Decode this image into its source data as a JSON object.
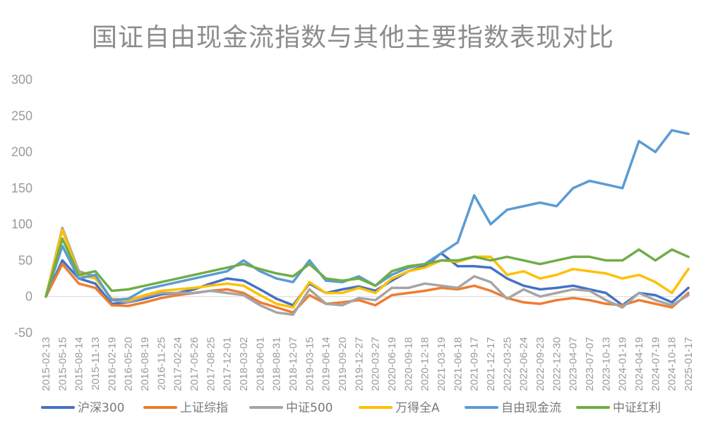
{
  "chart_data": {
    "type": "line",
    "title": "国证自由现金流指数与其他主要指数表现对比",
    "xlabel": "",
    "ylabel": "",
    "ylim": [
      -50,
      300
    ],
    "yticks": [
      -50,
      0,
      50,
      100,
      150,
      200,
      250,
      300
    ],
    "grid": false,
    "legend_position": "bottom",
    "x": [
      "2015-02-13",
      "2015-05-15",
      "2015-08-14",
      "2015-11-13",
      "2016-02-19",
      "2016-05-20",
      "2016-08-19",
      "2016-11-25",
      "2017-02-24",
      "2017-05-26",
      "2017-08-25",
      "2017-12-01",
      "2018-03-02",
      "2018-06-01",
      "2018-08-31",
      "2018-12-07",
      "2019-03-15",
      "2019-06-14",
      "2019-09-20",
      "2019-12-27",
      "2020-03-27",
      "2020-06-19",
      "2020-09-18",
      "2020-12-18",
      "2021-03-19",
      "2021-06-18",
      "2021-09-17",
      "2021-12-17",
      "2022-03-25",
      "2022-06-24",
      "2022-09-23",
      "2022-12-30",
      "2023-04-07",
      "2023-07-07",
      "2023-10-13",
      "2024-01-19",
      "2024-04-19",
      "2024-07-19",
      "2024-10-18",
      "2025-01-17"
    ],
    "x_tick_labels": [
      "2015-02-13",
      "2015-05-15",
      "2015-08-14",
      "2015-11-13",
      "2016-02-19",
      "2016-05-20",
      "2016-08-19",
      "2016-11-25",
      "2017-02-24",
      "2017-05-26",
      "2017-08-25",
      "2017-12-01",
      "2018-03-02",
      "2018-06-01",
      "2018-08-31",
      "2018-12-07",
      "2019-03-15",
      "2019-06-14",
      "2019-09-20",
      "2019-12-27",
      "2020-03-27",
      "2020-06-19",
      "2020-09-18",
      "2020-12-18",
      "2021-03-19",
      "2021-06-18",
      "2021-09-17",
      "2021-12-17",
      "2022-03-25",
      "2022-06-24",
      "2022-09-23",
      "2022-12-30",
      "2023-04-07",
      "2023-07-07",
      "2023-10-13",
      "2024-01-19",
      "2024-04-19",
      "2024-07-19",
      "2024-10-18",
      "2025-01-17"
    ],
    "series": [
      {
        "name": "沪深300",
        "color": "#4472C4",
        "values": [
          0,
          50,
          25,
          18,
          -10,
          -8,
          -3,
          3,
          5,
          10,
          18,
          25,
          22,
          10,
          -3,
          -12,
          18,
          5,
          10,
          14,
          8,
          22,
          35,
          42,
          60,
          42,
          42,
          40,
          25,
          15,
          10,
          12,
          15,
          10,
          5,
          -12,
          5,
          2,
          -8,
          12
        ]
      },
      {
        "name": "上证综指",
        "color": "#ED7D31",
        "values": [
          0,
          45,
          18,
          12,
          -12,
          -13,
          -8,
          -2,
          2,
          5,
          8,
          10,
          5,
          -8,
          -15,
          -22,
          2,
          -10,
          -8,
          -5,
          -12,
          2,
          5,
          8,
          12,
          10,
          15,
          8,
          -2,
          -8,
          -10,
          -5,
          -2,
          -5,
          -10,
          -12,
          -5,
          -10,
          -15,
          5
        ]
      },
      {
        "name": "中证500",
        "color": "#A5A5A5",
        "values": [
          0,
          95,
          35,
          28,
          -5,
          -8,
          0,
          5,
          5,
          5,
          8,
          5,
          2,
          -12,
          -22,
          -25,
          10,
          -10,
          -12,
          -2,
          -5,
          12,
          12,
          18,
          15,
          12,
          28,
          20,
          -3,
          10,
          0,
          5,
          10,
          8,
          -5,
          -15,
          5,
          -5,
          -12,
          2
        ]
      },
      {
        "name": "万得全A",
        "color": "#FFC000",
        "values": [
          0,
          92,
          30,
          25,
          -3,
          -5,
          2,
          8,
          10,
          12,
          15,
          18,
          15,
          2,
          -10,
          -15,
          20,
          5,
          5,
          12,
          5,
          25,
          35,
          40,
          50,
          48,
          55,
          55,
          30,
          35,
          25,
          30,
          38,
          35,
          32,
          25,
          30,
          20,
          5,
          38
        ]
      },
      {
        "name": "自由现金流",
        "color": "#5B9BD5",
        "values": [
          0,
          70,
          25,
          30,
          -5,
          -3,
          10,
          15,
          20,
          25,
          30,
          35,
          50,
          35,
          25,
          20,
          50,
          22,
          20,
          28,
          15,
          30,
          40,
          45,
          60,
          75,
          140,
          100,
          120,
          125,
          130,
          125,
          150,
          160,
          155,
          150,
          215,
          200,
          230,
          225
        ]
      },
      {
        "name": "中证红利",
        "color": "#70AD47",
        "values": [
          0,
          80,
          30,
          35,
          8,
          10,
          15,
          20,
          25,
          30,
          35,
          40,
          45,
          38,
          32,
          28,
          45,
          25,
          22,
          25,
          15,
          35,
          42,
          45,
          50,
          50,
          55,
          50,
          55,
          50,
          45,
          50,
          55,
          55,
          50,
          50,
          65,
          50,
          65,
          55
        ]
      }
    ]
  }
}
